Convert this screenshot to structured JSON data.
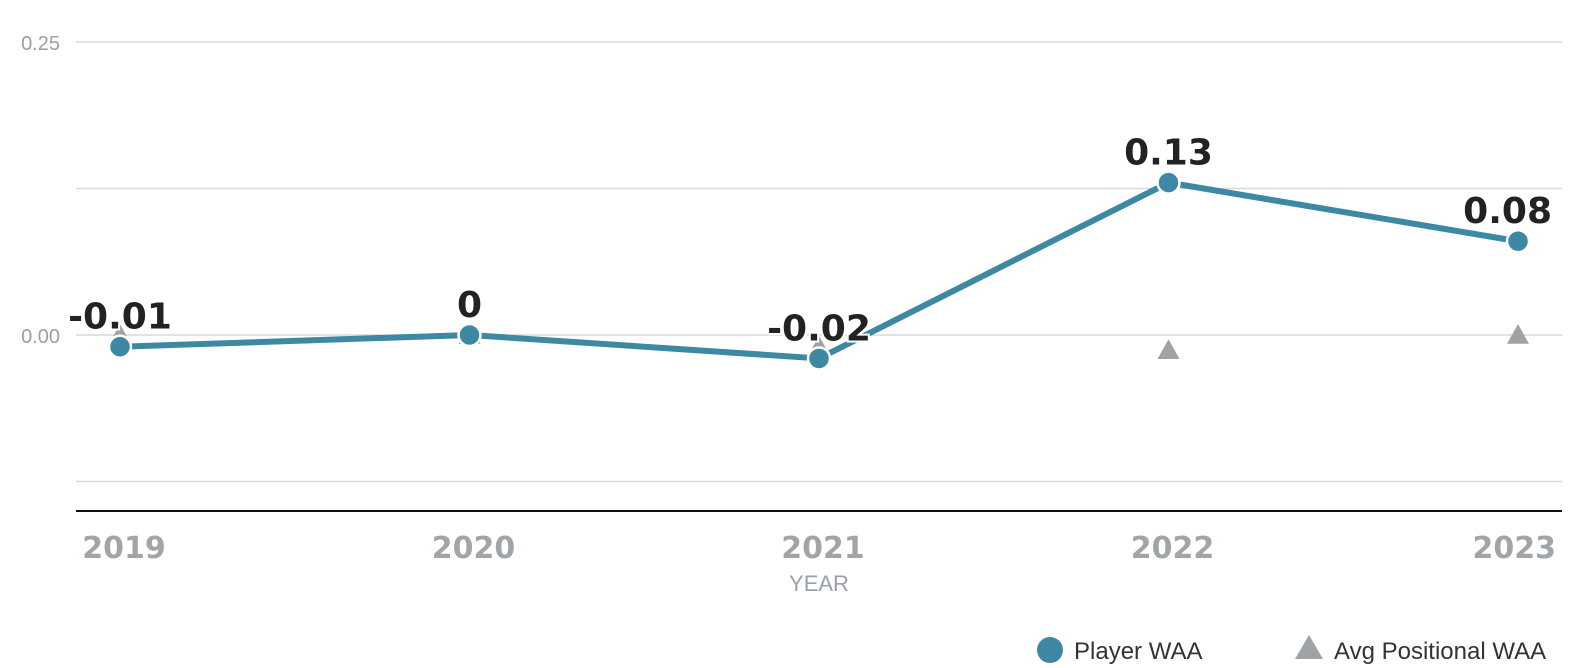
{
  "colors": {
    "player": "#3d88a2",
    "avg": "#a0a3a6",
    "grid": "#d9d9d9",
    "axis": "#111111"
  },
  "chart_data": {
    "type": "line",
    "x": [
      "2019",
      "2020",
      "2021",
      "2022",
      "2023"
    ],
    "xlabel": "YEAR",
    "ylabel": "",
    "ylim": [
      -0.1,
      0.25
    ],
    "yticks": [
      0.25,
      0.0
    ],
    "ytick_labels": [
      "0.25",
      "0.00"
    ],
    "grid": true,
    "legend": "bottom-right",
    "series": [
      {
        "name": "Player WAA",
        "marker": "circle",
        "values": [
          -0.01,
          0,
          -0.02,
          0.13,
          0.08
        ],
        "labels": [
          "-0.01",
          "0",
          "-0.02",
          "0.13",
          "0.08"
        ]
      },
      {
        "name": "Avg Positional WAA",
        "marker": "triangle",
        "values": [
          0.0,
          0.0,
          -0.01,
          -0.013,
          0.0
        ]
      }
    ]
  }
}
